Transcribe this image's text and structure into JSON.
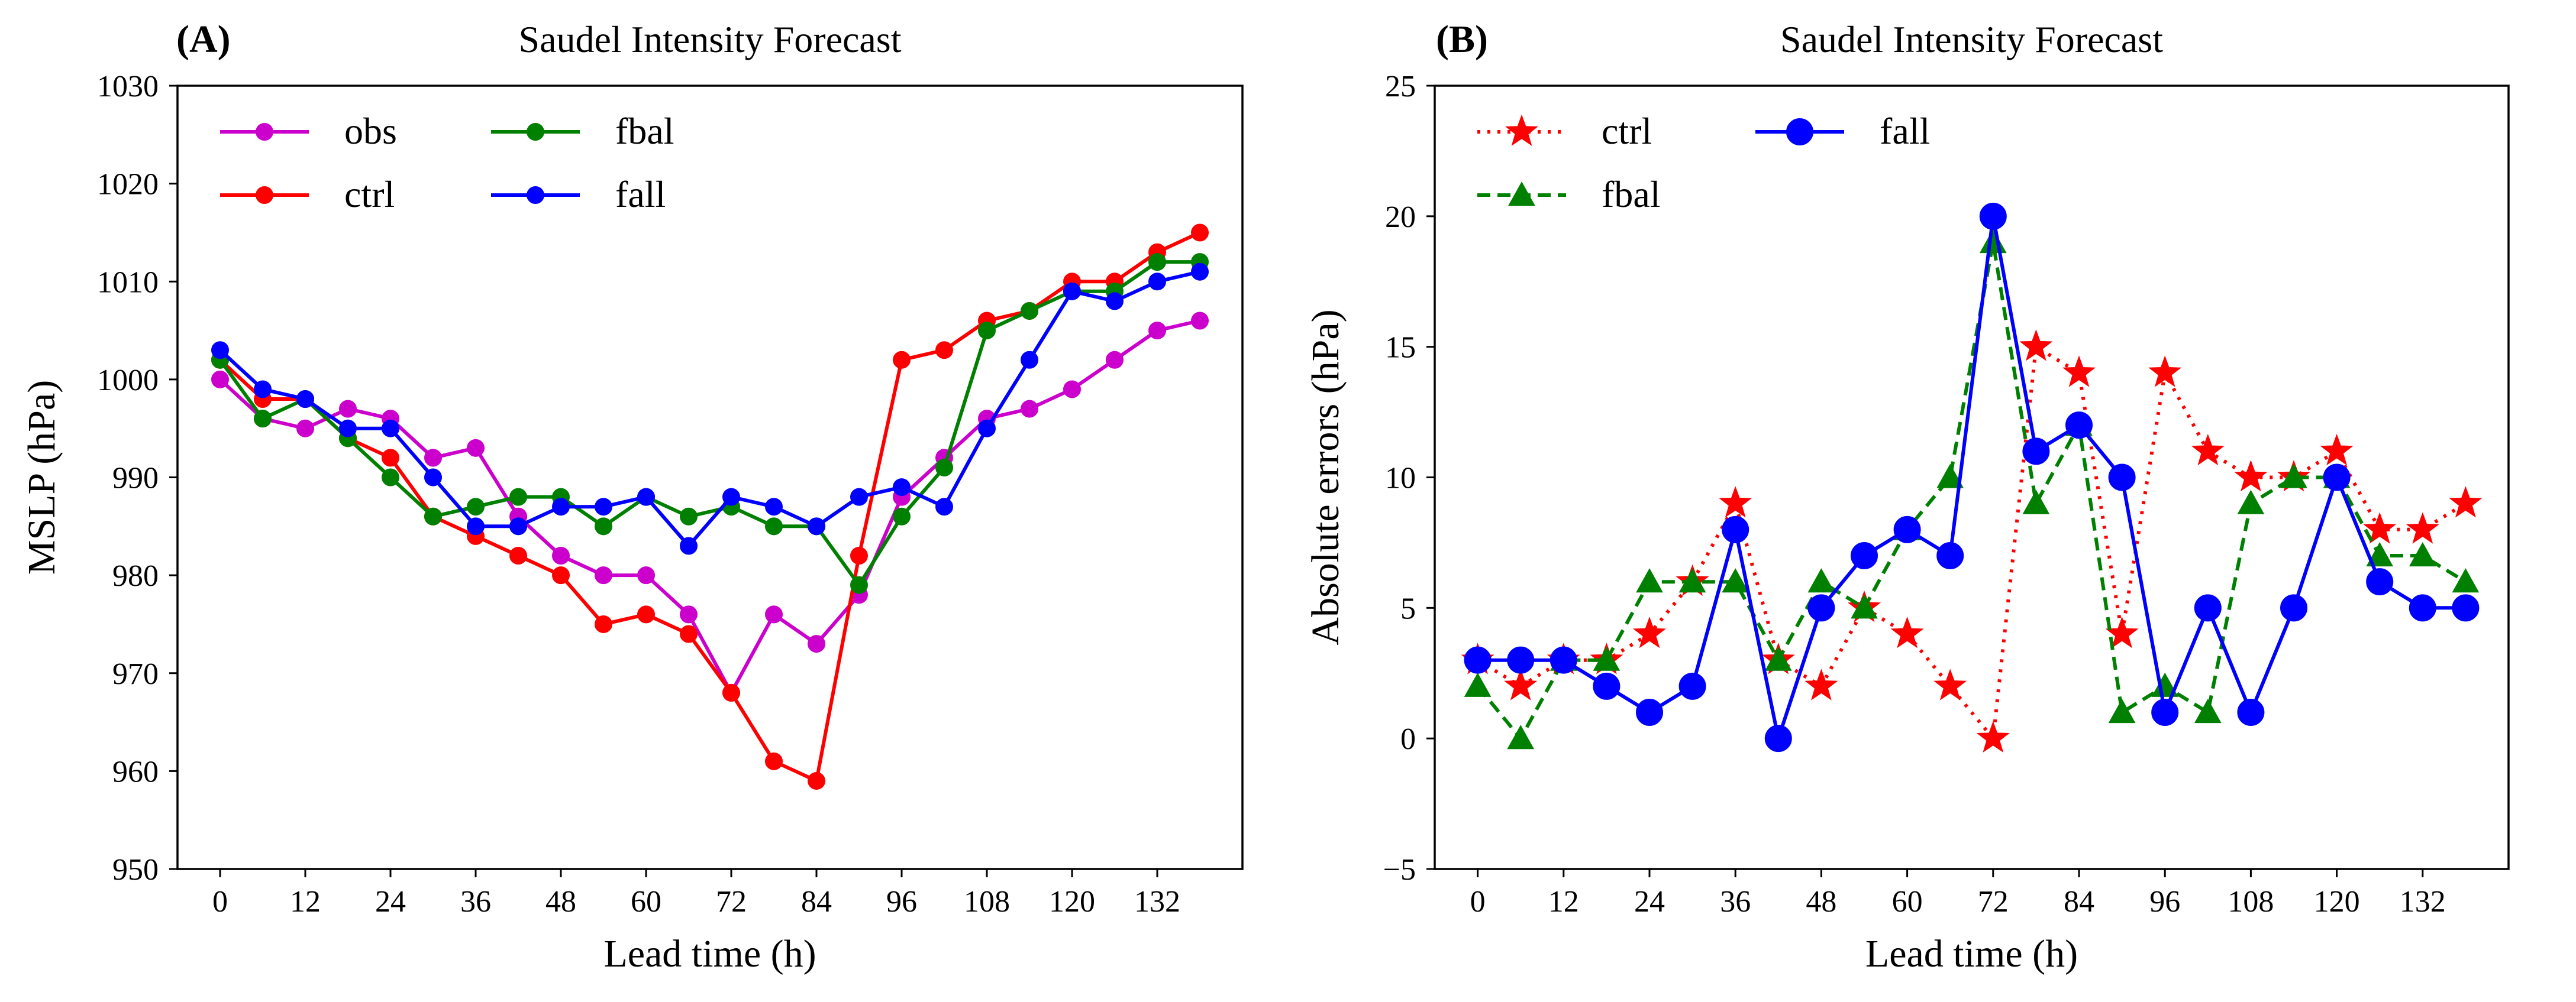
{
  "chart_data": [
    {
      "panel_label": "(A)",
      "type": "line",
      "title": "Saudel Intensity Forecast",
      "xlabel": "Lead time (h)",
      "ylabel": "MSLP (hPa)",
      "xlim": [
        -6,
        144
      ],
      "ylim": [
        950,
        1030
      ],
      "xticks": [
        0,
        12,
        24,
        36,
        48,
        60,
        72,
        84,
        96,
        108,
        120,
        132
      ],
      "yticks": [
        950,
        960,
        970,
        980,
        990,
        1000,
        1010,
        1020,
        1030
      ],
      "x": [
        0,
        6,
        12,
        18,
        24,
        30,
        36,
        42,
        48,
        54,
        60,
        66,
        72,
        78,
        84,
        90,
        96,
        102,
        108,
        114,
        120,
        126,
        132,
        138
      ],
      "legend": {
        "position": "top-left",
        "columns": 2
      },
      "series": [
        {
          "name": "obs",
          "color": "#cc00cc",
          "linestyle": "solid",
          "marker": "circle",
          "values": [
            1000,
            996,
            995,
            997,
            996,
            992,
            993,
            986,
            982,
            980,
            980,
            976,
            968,
            976,
            973,
            978,
            988,
            992,
            996,
            997,
            999,
            1002,
            1005,
            1006
          ]
        },
        {
          "name": "ctrl",
          "color": "#ff0000",
          "linestyle": "solid",
          "marker": "circle",
          "values": [
            1002,
            998,
            998,
            994,
            992,
            986,
            984,
            982,
            980,
            975,
            976,
            974,
            968,
            961,
            959,
            982,
            1002,
            1003,
            1006,
            1007,
            1010,
            1010,
            1013,
            1015
          ]
        },
        {
          "name": "fbal",
          "color": "#008000",
          "linestyle": "solid",
          "marker": "circle",
          "values": [
            1002,
            996,
            998,
            994,
            990,
            986,
            987,
            988,
            988,
            985,
            988,
            986,
            987,
            985,
            985,
            979,
            986,
            991,
            1005,
            1007,
            1009,
            1009,
            1012,
            1012
          ]
        },
        {
          "name": "fall",
          "color": "#0000ff",
          "linestyle": "solid",
          "marker": "circle",
          "values": [
            1003,
            999,
            998,
            995,
            995,
            990,
            985,
            985,
            987,
            987,
            988,
            983,
            988,
            987,
            985,
            988,
            989,
            987,
            995,
            1002,
            1009,
            1008,
            1010,
            1011
          ]
        }
      ]
    },
    {
      "panel_label": "(B)",
      "type": "line",
      "title": "Saudel Intensity Forecast",
      "xlabel": "Lead time (h)",
      "ylabel": "Absolute errors (hPa)",
      "xlim": [
        -6,
        144
      ],
      "ylim": [
        -5,
        25
      ],
      "xticks": [
        0,
        12,
        24,
        36,
        48,
        60,
        72,
        84,
        96,
        108,
        120,
        132
      ],
      "yticks": [
        -5,
        0,
        5,
        10,
        15,
        20,
        25
      ],
      "ytick_labels": [
        "−5",
        "0",
        "5",
        "10",
        "15",
        "20",
        "25"
      ],
      "x": [
        0,
        6,
        12,
        18,
        24,
        30,
        36,
        42,
        48,
        54,
        60,
        66,
        72,
        78,
        84,
        90,
        96,
        102,
        108,
        114,
        120,
        126,
        132,
        138
      ],
      "legend": {
        "position": "top-left",
        "columns": 2
      },
      "series": [
        {
          "name": "ctrl",
          "color": "#ff0000",
          "linestyle": "dotted",
          "marker": "star",
          "values": [
            3,
            2,
            3,
            3,
            4,
            6,
            9,
            3,
            2,
            5,
            4,
            2,
            0,
            15,
            14,
            4,
            14,
            11,
            10,
            10,
            11,
            8,
            8,
            9
          ]
        },
        {
          "name": "fbal",
          "color": "#008000",
          "linestyle": "dashed",
          "marker": "triangle",
          "values": [
            2,
            0,
            3,
            3,
            6,
            6,
            6,
            3,
            6,
            5,
            8,
            10,
            19,
            9,
            12,
            1,
            2,
            1,
            9,
            10,
            10,
            7,
            7,
            6
          ]
        },
        {
          "name": "fall",
          "color": "#0000ff",
          "linestyle": "solid",
          "marker": "bigcircle",
          "values": [
            3,
            3,
            3,
            2,
            1,
            2,
            8,
            0,
            5,
            7,
            8,
            7,
            20,
            11,
            12,
            10,
            1,
            5,
            1,
            5,
            10,
            6,
            5,
            5
          ]
        }
      ]
    }
  ]
}
